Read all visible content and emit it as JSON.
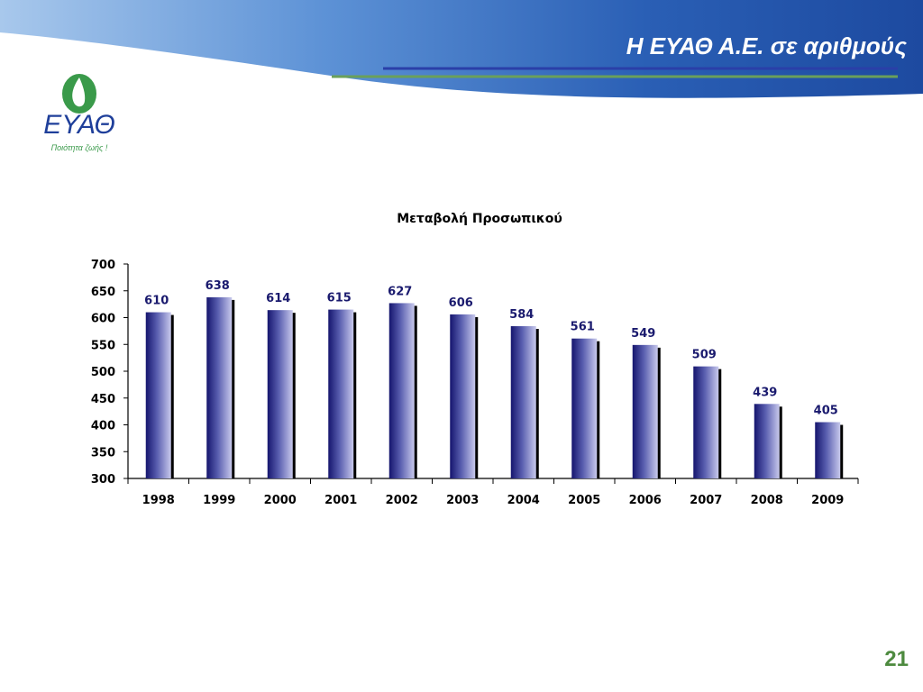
{
  "slide": {
    "title": "Η ΕΥΑΘ Α.Ε. σε αριθμούς",
    "page_number": "21"
  },
  "logo": {
    "name": "ΕΥΑΘ",
    "tagline": "Ποιότητα ζωής !"
  },
  "colors": {
    "title_bar": "#1f4ea8",
    "bar_dark": "#15156e",
    "bar_light": "#c8c9ec",
    "accent_green": "#4d8a3f",
    "label_navy": "#1a1a6e"
  },
  "chart_data": {
    "type": "bar",
    "title": "Μεταβολή Προσωπικού",
    "categories": [
      "1998",
      "1999",
      "2000",
      "2001",
      "2002",
      "2003",
      "2004",
      "2005",
      "2006",
      "2007",
      "2008",
      "2009"
    ],
    "values": [
      610,
      638,
      614,
      615,
      627,
      606,
      584,
      561,
      549,
      509,
      439,
      405
    ],
    "ylim": [
      300,
      700
    ],
    "yticks": [
      "300",
      "350",
      "400",
      "450",
      "500",
      "550",
      "600",
      "650",
      "700"
    ],
    "grid": false,
    "legend": "none"
  }
}
